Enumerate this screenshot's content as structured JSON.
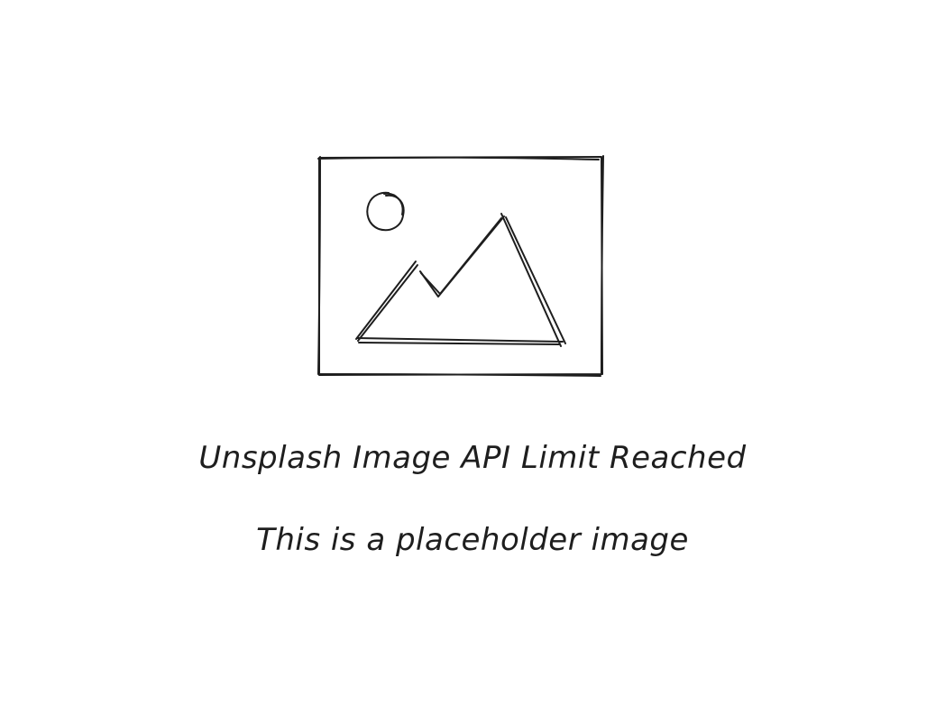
{
  "placeholder": {
    "icon": "image-placeholder-icon",
    "title": "Unsplash Image API Limit Reached",
    "subtitle": "This is a placeholder image"
  },
  "colors": {
    "background": "#ffffff",
    "ink": "#1e1e1e"
  }
}
